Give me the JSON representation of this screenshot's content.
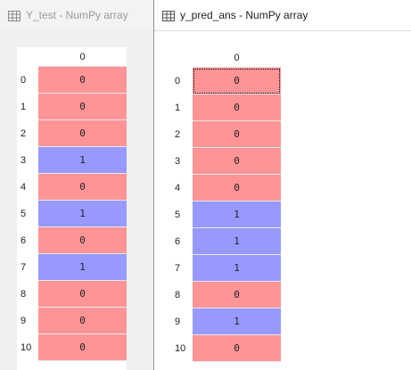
{
  "windows": [
    {
      "title": "Y_test - NumPy array",
      "column_header": "0",
      "rows": [
        {
          "index": "0",
          "value": "0"
        },
        {
          "index": "1",
          "value": "0"
        },
        {
          "index": "2",
          "value": "0"
        },
        {
          "index": "3",
          "value": "1"
        },
        {
          "index": "4",
          "value": "0"
        },
        {
          "index": "5",
          "value": "1"
        },
        {
          "index": "6",
          "value": "0"
        },
        {
          "index": "7",
          "value": "1"
        },
        {
          "index": "8",
          "value": "0"
        },
        {
          "index": "9",
          "value": "0"
        },
        {
          "index": "10",
          "value": "0"
        }
      ]
    },
    {
      "title": "y_pred_ans - NumPy array",
      "column_header": "0",
      "rows": [
        {
          "index": "0",
          "value": "0"
        },
        {
          "index": "1",
          "value": "0"
        },
        {
          "index": "2",
          "value": "0"
        },
        {
          "index": "3",
          "value": "0"
        },
        {
          "index": "4",
          "value": "0"
        },
        {
          "index": "5",
          "value": "1"
        },
        {
          "index": "6",
          "value": "1"
        },
        {
          "index": "7",
          "value": "1"
        },
        {
          "index": "8",
          "value": "0"
        },
        {
          "index": "9",
          "value": "1"
        },
        {
          "index": "10",
          "value": "0"
        }
      ]
    }
  ],
  "colors": {
    "value_0": "#ff9497",
    "value_1": "#9799ff"
  },
  "icons": {
    "title": "table-grid-icon"
  }
}
